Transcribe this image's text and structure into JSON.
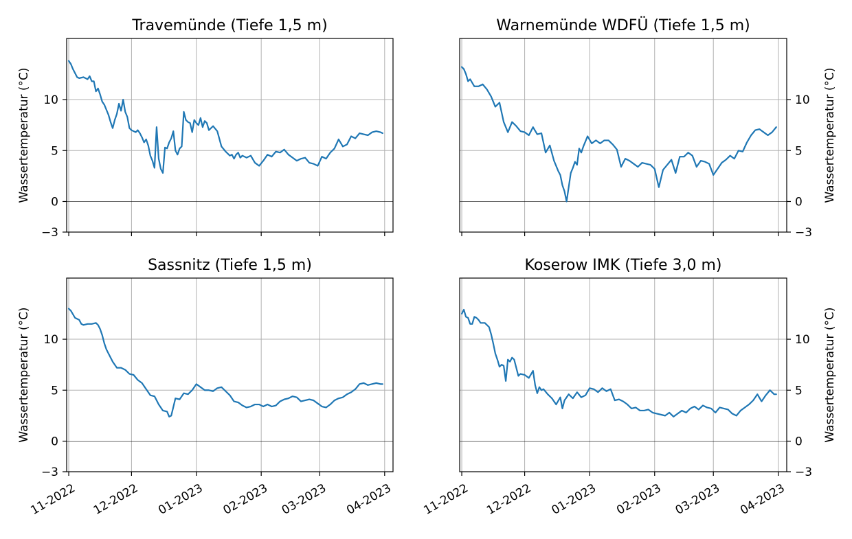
{
  "chart_data": [
    {
      "type": "line",
      "title": "Travemünde  (Tiefe 1,5 m)",
      "ylabel": "Wassertemperatur (°C)",
      "ylabel_side": "left",
      "ylim": [
        -3,
        16
      ],
      "xlim": [
        "2022-10-31",
        "2023-04-05"
      ],
      "yticks": [
        -3,
        0,
        5,
        10
      ],
      "xticks": [
        "2022-11-01",
        "2022-12-01",
        "2023-01-01",
        "2023-02-01",
        "2023-03-01",
        "2023-04-01"
      ],
      "xtick_labels": [],
      "grid": true,
      "zero_line": true,
      "color": "#1f77b4",
      "series": [
        {
          "x": [
            "2022-11-01",
            "2022-11-02",
            "2022-11-03",
            "2022-11-05",
            "2022-11-06",
            "2022-11-08",
            "2022-11-10",
            "2022-11-11",
            "2022-11-12",
            "2022-11-13",
            "2022-11-14",
            "2022-11-15",
            "2022-11-16",
            "2022-11-17",
            "2022-11-18",
            "2022-11-19",
            "2022-11-20",
            "2022-11-21",
            "2022-11-22",
            "2022-11-23",
            "2022-11-24",
            "2022-11-25",
            "2022-11-26",
            "2022-11-27",
            "2022-11-28",
            "2022-11-29",
            "2022-11-30",
            "2022-12-01",
            "2022-12-02",
            "2022-12-03",
            "2022-12-04",
            "2022-12-05",
            "2022-12-06",
            "2022-12-07",
            "2022-12-08",
            "2022-12-09",
            "2022-12-10",
            "2022-12-11",
            "2022-12-12",
            "2022-12-13",
            "2022-12-14",
            "2022-12-15",
            "2022-12-16",
            "2022-12-17",
            "2022-12-18",
            "2022-12-19",
            "2022-12-20",
            "2022-12-21",
            "2022-12-22",
            "2022-12-23",
            "2022-12-24",
            "2022-12-25",
            "2022-12-26",
            "2022-12-27",
            "2022-12-28",
            "2022-12-29",
            "2022-12-30",
            "2022-12-31",
            "2023-01-01",
            "2023-01-02",
            "2023-01-03",
            "2023-01-04",
            "2023-01-05",
            "2023-01-06",
            "2023-01-07",
            "2023-01-09",
            "2023-01-11",
            "2023-01-13",
            "2023-01-15",
            "2023-01-17",
            "2023-01-18",
            "2023-01-19",
            "2023-01-20",
            "2023-01-21",
            "2023-01-22",
            "2023-01-23",
            "2023-01-25",
            "2023-01-27",
            "2023-01-29",
            "2023-01-31",
            "2023-02-02",
            "2023-02-04",
            "2023-02-06",
            "2023-02-08",
            "2023-02-10",
            "2023-02-12",
            "2023-02-14",
            "2023-02-16",
            "2023-02-18",
            "2023-02-20",
            "2023-02-22",
            "2023-02-24",
            "2023-02-26",
            "2023-02-28",
            "2023-03-02",
            "2023-03-04",
            "2023-03-06",
            "2023-03-08",
            "2023-03-10",
            "2023-03-12",
            "2023-03-14",
            "2023-03-16",
            "2023-03-18",
            "2023-03-20",
            "2023-03-22",
            "2023-03-24",
            "2023-03-26",
            "2023-03-28",
            "2023-03-30",
            "2023-03-31"
          ],
          "y": [
            13.8,
            13.5,
            13.0,
            12.2,
            12.1,
            12.2,
            12.0,
            12.3,
            11.8,
            11.8,
            10.8,
            11.1,
            10.5,
            9.8,
            9.5,
            9.0,
            8.5,
            7.8,
            7.2,
            8.0,
            8.6,
            9.6,
            8.9,
            10.0,
            8.8,
            8.3,
            7.2,
            7.0,
            6.9,
            6.8,
            7.0,
            6.7,
            6.3,
            5.8,
            6.1,
            5.5,
            4.5,
            4.0,
            3.3,
            7.3,
            4.2,
            3.2,
            2.8,
            5.3,
            5.2,
            5.8,
            6.2,
            6.9,
            5.0,
            4.6,
            5.2,
            5.4,
            8.8,
            8.0,
            7.8,
            7.7,
            6.8,
            8.0,
            7.7,
            7.5,
            8.2,
            7.3,
            7.9,
            7.7,
            7.0,
            7.4,
            6.9,
            5.4,
            4.9,
            4.5,
            4.6,
            4.2,
            4.6,
            4.8,
            4.3,
            4.5,
            4.3,
            4.5,
            3.8,
            3.5,
            4.0,
            4.6,
            4.4,
            4.9,
            4.8,
            5.1,
            4.6,
            4.3,
            4.0,
            4.2,
            4.3,
            3.8,
            3.7,
            3.5,
            4.4,
            4.2,
            4.8,
            5.2,
            6.1,
            5.4,
            5.6,
            6.4,
            6.2,
            6.7,
            6.6,
            6.5,
            6.8,
            6.9,
            6.8,
            6.7
          ]
        }
      ]
    },
    {
      "type": "line",
      "title": "Warnemünde WDFÜ (Tiefe 1,5 m)",
      "ylabel": "Wassertemperatur (°C)",
      "ylabel_side": "right",
      "ylim": [
        -3,
        16
      ],
      "xlim": [
        "2022-10-31",
        "2023-04-05"
      ],
      "yticks": [
        -3,
        0,
        5,
        10
      ],
      "xticks": [
        "2022-11-01",
        "2022-12-01",
        "2023-01-01",
        "2023-02-01",
        "2023-03-01",
        "2023-04-01"
      ],
      "xtick_labels": [],
      "grid": true,
      "zero_line": true,
      "color": "#1f77b4",
      "series": [
        {
          "x": [
            "2022-11-01",
            "2022-11-02",
            "2022-11-03",
            "2022-11-04",
            "2022-11-05",
            "2022-11-07",
            "2022-11-09",
            "2022-11-11",
            "2022-11-13",
            "2022-11-15",
            "2022-11-17",
            "2022-11-19",
            "2022-11-21",
            "2022-11-23",
            "2022-11-25",
            "2022-11-27",
            "2022-11-29",
            "2022-12-01",
            "2022-12-03",
            "2022-12-05",
            "2022-12-07",
            "2022-12-09",
            "2022-12-11",
            "2022-12-13",
            "2022-12-15",
            "2022-12-17",
            "2022-12-18",
            "2022-12-19",
            "2022-12-20",
            "2022-12-21",
            "2022-12-22",
            "2022-12-23",
            "2022-12-24",
            "2022-12-25",
            "2022-12-26",
            "2022-12-27",
            "2022-12-28",
            "2022-12-29",
            "2022-12-30",
            "2022-12-31",
            "2023-01-02",
            "2023-01-04",
            "2023-01-06",
            "2023-01-08",
            "2023-01-10",
            "2023-01-12",
            "2023-01-14",
            "2023-01-16",
            "2023-01-18",
            "2023-01-20",
            "2023-01-22",
            "2023-01-24",
            "2023-01-26",
            "2023-01-28",
            "2023-01-30",
            "2023-02-01",
            "2023-02-03",
            "2023-02-05",
            "2023-02-07",
            "2023-02-09",
            "2023-02-11",
            "2023-02-13",
            "2023-02-15",
            "2023-02-17",
            "2023-02-19",
            "2023-02-21",
            "2023-02-23",
            "2023-02-25",
            "2023-02-27",
            "2023-03-01",
            "2023-03-03",
            "2023-03-05",
            "2023-03-07",
            "2023-03-09",
            "2023-03-11",
            "2023-03-13",
            "2023-03-15",
            "2023-03-17",
            "2023-03-19",
            "2023-03-21",
            "2023-03-23",
            "2023-03-25",
            "2023-03-27",
            "2023-03-29",
            "2023-03-31"
          ],
          "y": [
            13.2,
            13.0,
            12.5,
            11.8,
            12.0,
            11.3,
            11.3,
            11.5,
            11.0,
            10.3,
            9.3,
            9.7,
            7.8,
            6.8,
            7.8,
            7.4,
            6.9,
            6.8,
            6.5,
            7.3,
            6.6,
            6.7,
            4.8,
            5.5,
            4.0,
            3.0,
            2.6,
            1.6,
            1.0,
            0.0,
            1.4,
            2.8,
            3.3,
            3.9,
            3.6,
            5.2,
            4.8,
            5.4,
            5.9,
            6.4,
            5.7,
            6.0,
            5.7,
            6.0,
            6.0,
            5.6,
            5.1,
            3.4,
            4.2,
            4.0,
            3.7,
            3.4,
            3.8,
            3.7,
            3.6,
            3.2,
            1.4,
            3.1,
            3.6,
            4.1,
            2.8,
            4.4,
            4.4,
            4.8,
            4.5,
            3.4,
            4.0,
            3.9,
            3.7,
            2.6,
            3.2,
            3.8,
            4.1,
            4.5,
            4.2,
            5.0,
            4.9,
            5.8,
            6.5,
            7.0,
            7.1,
            6.8,
            6.5,
            6.8,
            7.3
          ]
        }
      ]
    },
    {
      "type": "line",
      "title": "Sassnitz  (Tiefe 1,5 m)",
      "ylabel": "Wassertemperatur (°C)",
      "ylabel_side": "left",
      "ylim": [
        -3,
        16
      ],
      "xlim": [
        "2022-10-31",
        "2023-04-05"
      ],
      "yticks": [
        -3,
        0,
        5,
        10
      ],
      "xticks": [
        "2022-11-01",
        "2022-12-01",
        "2023-01-01",
        "2023-02-01",
        "2023-03-01",
        "2023-04-01"
      ],
      "xtick_labels": [
        "11-2022",
        "12-2022",
        "01-2023",
        "02-2023",
        "03-2023",
        "04-2023"
      ],
      "grid": true,
      "zero_line": true,
      "color": "#1f77b4",
      "series": [
        {
          "x": [
            "2022-11-01",
            "2022-11-02",
            "2022-11-04",
            "2022-11-06",
            "2022-11-07",
            "2022-11-08",
            "2022-11-10",
            "2022-11-12",
            "2022-11-14",
            "2022-11-15",
            "2022-11-16",
            "2022-11-17",
            "2022-11-18",
            "2022-11-19",
            "2022-11-20",
            "2022-11-22",
            "2022-11-24",
            "2022-11-26",
            "2022-11-28",
            "2022-11-30",
            "2022-12-02",
            "2022-12-04",
            "2022-12-06",
            "2022-12-08",
            "2022-12-10",
            "2022-12-12",
            "2022-12-14",
            "2022-12-16",
            "2022-12-18",
            "2022-12-19",
            "2022-12-20",
            "2022-12-22",
            "2022-12-24",
            "2022-12-26",
            "2022-12-28",
            "2022-12-30",
            "2023-01-01",
            "2023-01-03",
            "2023-01-05",
            "2023-01-07",
            "2023-01-09",
            "2023-01-11",
            "2023-01-13",
            "2023-01-15",
            "2023-01-17",
            "2023-01-19",
            "2023-01-21",
            "2023-01-23",
            "2023-01-25",
            "2023-01-27",
            "2023-01-29",
            "2023-01-31",
            "2023-02-02",
            "2023-02-04",
            "2023-02-06",
            "2023-02-08",
            "2023-02-10",
            "2023-02-12",
            "2023-02-14",
            "2023-02-16",
            "2023-02-18",
            "2023-02-20",
            "2023-02-22",
            "2023-02-24",
            "2023-02-26",
            "2023-02-28",
            "2023-03-02",
            "2023-03-04",
            "2023-03-06",
            "2023-03-08",
            "2023-03-10",
            "2023-03-12",
            "2023-03-14",
            "2023-03-16",
            "2023-03-18",
            "2023-03-20",
            "2023-03-22",
            "2023-03-24",
            "2023-03-26",
            "2023-03-28",
            "2023-03-30",
            "2023-03-31"
          ],
          "y": [
            13.0,
            12.8,
            12.1,
            11.9,
            11.5,
            11.4,
            11.5,
            11.5,
            11.6,
            11.4,
            11.0,
            10.4,
            9.6,
            9.0,
            8.6,
            7.8,
            7.2,
            7.2,
            7.0,
            6.6,
            6.5,
            6.0,
            5.7,
            5.1,
            4.5,
            4.4,
            3.6,
            3.0,
            2.9,
            2.4,
            2.5,
            4.2,
            4.1,
            4.7,
            4.6,
            5.0,
            5.6,
            5.3,
            5.0,
            5.0,
            4.9,
            5.2,
            5.3,
            4.9,
            4.5,
            3.9,
            3.8,
            3.5,
            3.3,
            3.4,
            3.6,
            3.6,
            3.4,
            3.6,
            3.4,
            3.5,
            3.9,
            4.1,
            4.2,
            4.4,
            4.3,
            3.9,
            4.0,
            4.1,
            4.0,
            3.7,
            3.4,
            3.3,
            3.6,
            4.0,
            4.2,
            4.3,
            4.6,
            4.8,
            5.1,
            5.6,
            5.7,
            5.5,
            5.6,
            5.7,
            5.6,
            5.6
          ]
        }
      ]
    },
    {
      "type": "line",
      "title": "Koserow IMK (Tiefe 3,0 m)",
      "ylabel": "Wassertemperatur (°C)",
      "ylabel_side": "right",
      "ylim": [
        -3,
        16
      ],
      "xlim": [
        "2022-10-31",
        "2023-04-05"
      ],
      "yticks": [
        -3,
        0,
        5,
        10
      ],
      "xticks": [
        "2022-11-01",
        "2022-12-01",
        "2023-01-01",
        "2023-02-01",
        "2023-03-01",
        "2023-04-01"
      ],
      "xtick_labels": [
        "11-2022",
        "12-2022",
        "01-2023",
        "02-2023",
        "03-2023",
        "04-2023"
      ],
      "grid": true,
      "zero_line": true,
      "color": "#1f77b4",
      "series": [
        {
          "x": [
            "2022-11-01",
            "2022-11-02",
            "2022-11-03",
            "2022-11-04",
            "2022-11-05",
            "2022-11-06",
            "2022-11-07",
            "2022-11-08",
            "2022-11-09",
            "2022-11-10",
            "2022-11-12",
            "2022-11-14",
            "2022-11-15",
            "2022-11-16",
            "2022-11-17",
            "2022-11-18",
            "2022-11-19",
            "2022-11-20",
            "2022-11-21",
            "2022-11-22",
            "2022-11-23",
            "2022-11-24",
            "2022-11-25",
            "2022-11-26",
            "2022-11-27",
            "2022-11-28",
            "2022-11-29",
            "2022-12-01",
            "2022-12-03",
            "2022-12-05",
            "2022-12-06",
            "2022-12-07",
            "2022-12-08",
            "2022-12-09",
            "2022-12-10",
            "2022-12-12",
            "2022-12-14",
            "2022-12-16",
            "2022-12-18",
            "2022-12-19",
            "2022-12-20",
            "2022-12-22",
            "2022-12-24",
            "2022-12-26",
            "2022-12-28",
            "2022-12-30",
            "2023-01-01",
            "2023-01-03",
            "2023-01-05",
            "2023-01-07",
            "2023-01-09",
            "2023-01-11",
            "2023-01-13",
            "2023-01-15",
            "2023-01-17",
            "2023-01-19",
            "2023-01-21",
            "2023-01-23",
            "2023-01-25",
            "2023-01-27",
            "2023-01-29",
            "2023-01-31",
            "2023-02-02",
            "2023-02-04",
            "2023-02-06",
            "2023-02-08",
            "2023-02-10",
            "2023-02-12",
            "2023-02-14",
            "2023-02-16",
            "2023-02-18",
            "2023-02-20",
            "2023-02-22",
            "2023-02-24",
            "2023-02-26",
            "2023-02-28",
            "2023-03-02",
            "2023-03-04",
            "2023-03-06",
            "2023-03-08",
            "2023-03-10",
            "2023-03-12",
            "2023-03-14",
            "2023-03-16",
            "2023-03-18",
            "2023-03-20",
            "2023-03-22",
            "2023-03-24",
            "2023-03-26",
            "2023-03-28",
            "2023-03-30",
            "2023-03-31"
          ],
          "y": [
            12.5,
            12.9,
            12.2,
            12.1,
            11.5,
            11.5,
            12.2,
            12.1,
            11.9,
            11.6,
            11.6,
            11.2,
            10.5,
            9.6,
            8.6,
            8.0,
            7.3,
            7.5,
            7.4,
            5.9,
            8.0,
            7.8,
            8.2,
            8.0,
            7.2,
            6.4,
            6.6,
            6.5,
            6.2,
            6.9,
            5.5,
            4.7,
            5.3,
            5.0,
            5.1,
            4.6,
            4.2,
            3.6,
            4.3,
            3.2,
            4.0,
            4.6,
            4.2,
            4.8,
            4.3,
            4.5,
            5.2,
            5.1,
            4.8,
            5.2,
            4.9,
            5.1,
            4.0,
            4.1,
            3.9,
            3.6,
            3.2,
            3.3,
            3.0,
            3.0,
            3.1,
            2.8,
            2.7,
            2.6,
            2.5,
            2.8,
            2.4,
            2.7,
            3.0,
            2.8,
            3.2,
            3.4,
            3.1,
            3.5,
            3.3,
            3.2,
            2.8,
            3.3,
            3.2,
            3.1,
            2.7,
            2.5,
            3.0,
            3.3,
            3.6,
            4.0,
            4.6,
            3.9,
            4.5,
            5.0,
            4.6,
            4.6
          ]
        }
      ]
    }
  ]
}
